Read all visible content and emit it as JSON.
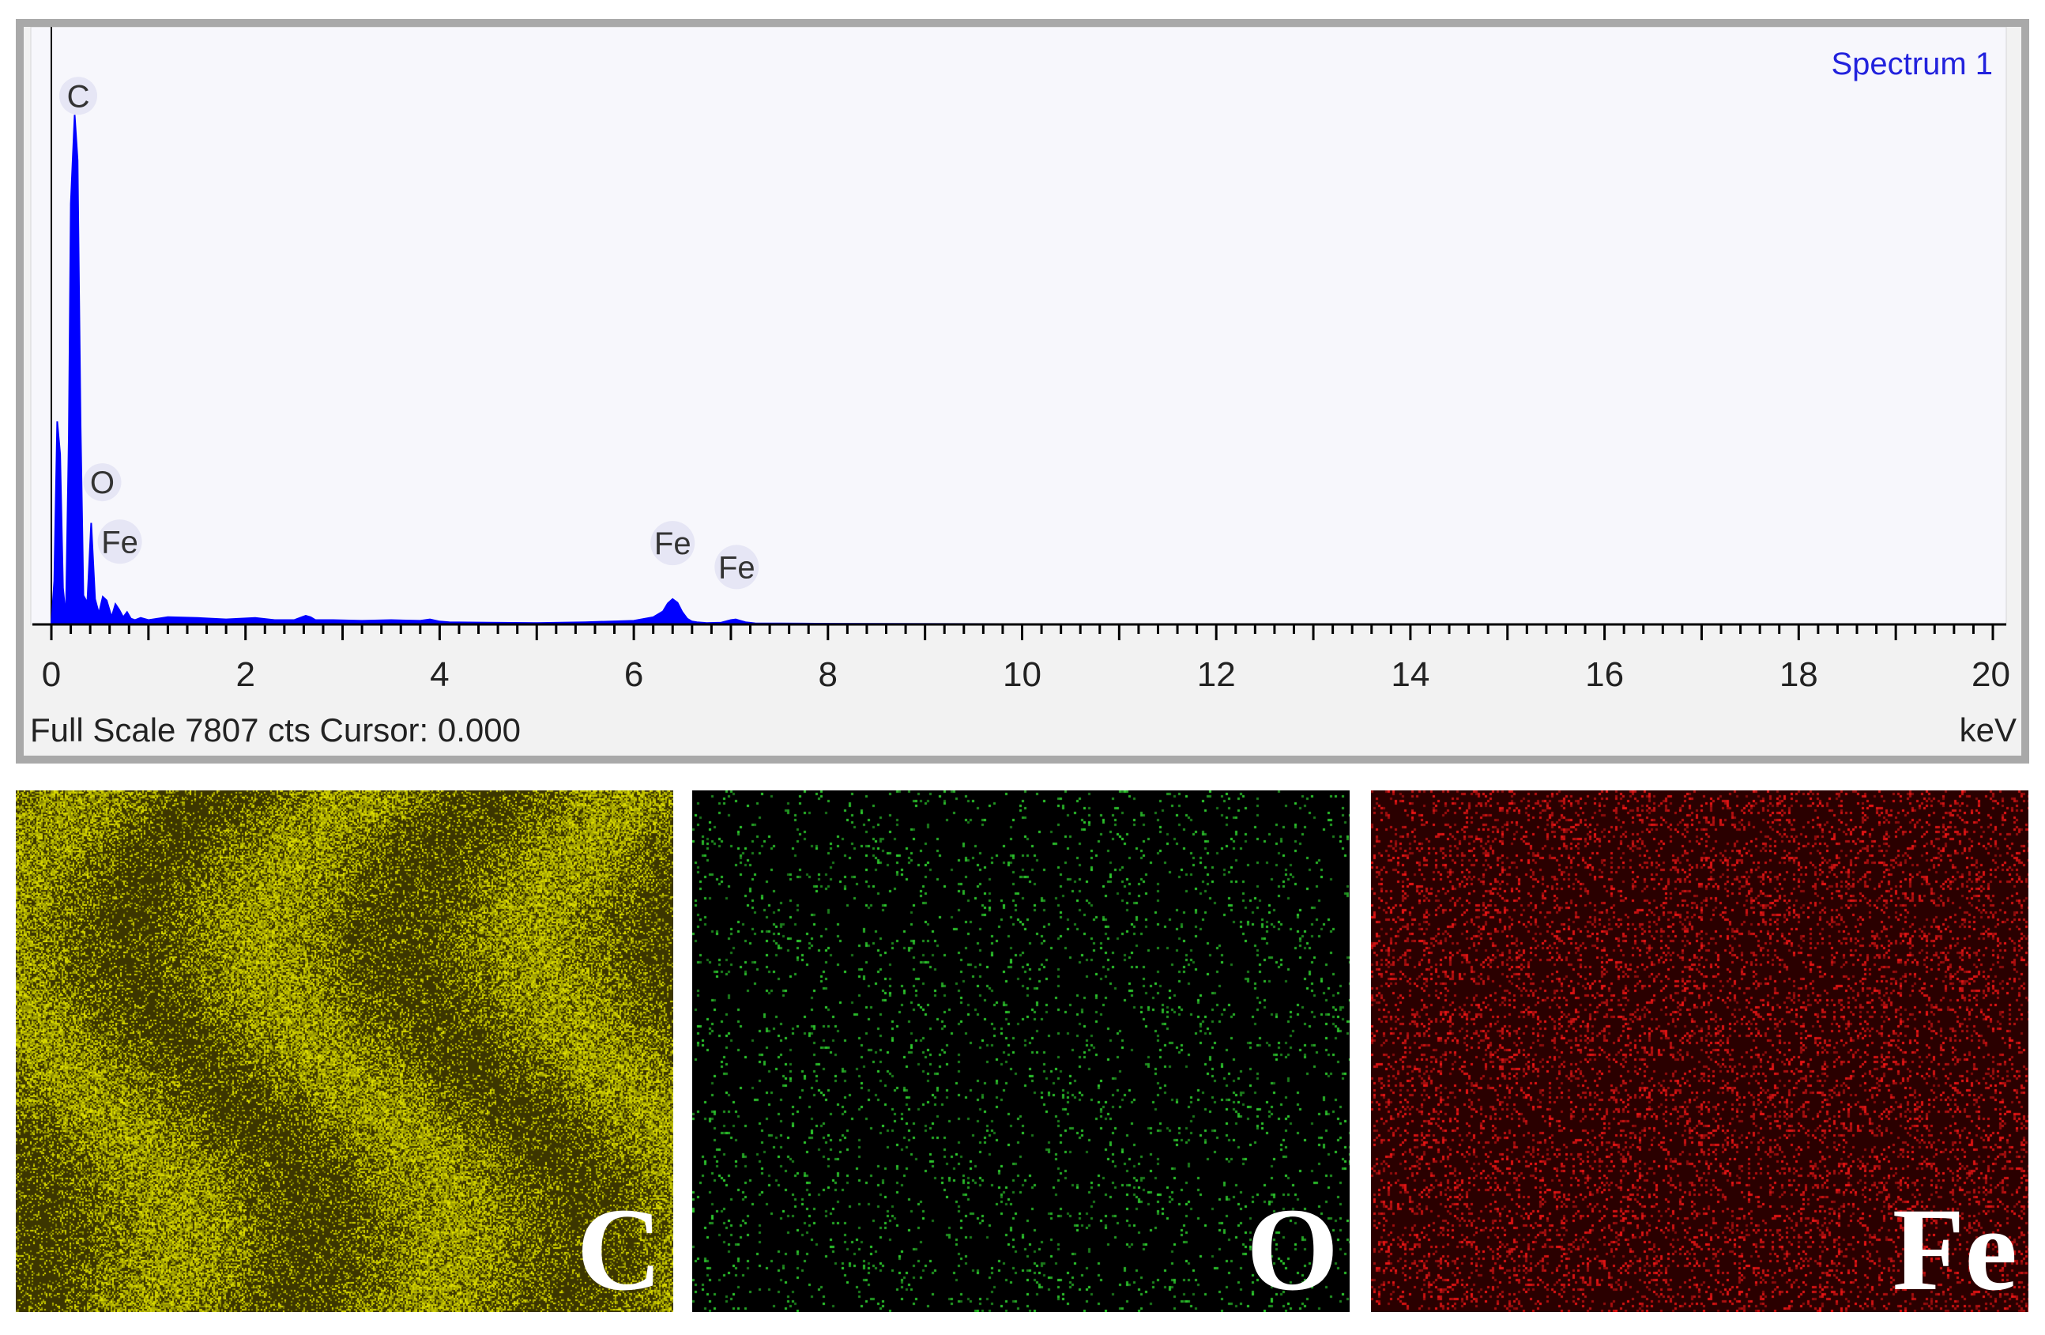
{
  "chart_data": {
    "type": "line",
    "title": "Spectrum 1",
    "xlabel": "keV",
    "xlim": [
      0,
      20
    ],
    "ylim": [
      0,
      7807
    ],
    "x_ticks": [
      0,
      2,
      4,
      6,
      8,
      10,
      12,
      14,
      16,
      18,
      20
    ],
    "x_tick_labels": [
      "0",
      "2",
      "4",
      "6",
      "8",
      "10",
      "12",
      "14",
      "16",
      "18",
      "20"
    ],
    "status": "Full Scale 7807 cts Cursor: 0.000",
    "series": [
      {
        "color": "#0000ff",
        "x": [
          0.0,
          0.03,
          0.06,
          0.09,
          0.12,
          0.15,
          0.18,
          0.2,
          0.24,
          0.27,
          0.3,
          0.33,
          0.37,
          0.41,
          0.45,
          0.49,
          0.53,
          0.57,
          0.62,
          0.66,
          0.7,
          0.74,
          0.78,
          0.82,
          0.86,
          0.92,
          1.0,
          1.2,
          1.5,
          1.8,
          2.1,
          2.3,
          2.5,
          2.62,
          2.67,
          2.72,
          2.9,
          3.2,
          3.5,
          3.8,
          3.9,
          4.0,
          4.1,
          4.5,
          5.0,
          5.5,
          6.0,
          6.2,
          6.3,
          6.35,
          6.4,
          6.45,
          6.5,
          6.55,
          6.6,
          6.65,
          6.75,
          6.9,
          7.0,
          7.05,
          7.1,
          7.15,
          7.25,
          8.0,
          10.0,
          14.0,
          20.0
        ],
        "y": [
          0,
          600,
          2800,
          2350,
          500,
          100,
          2600,
          5800,
          7030,
          6400,
          2800,
          400,
          300,
          1400,
          350,
          150,
          380,
          330,
          100,
          280,
          200,
          100,
          170,
          80,
          60,
          90,
          60,
          100,
          90,
          70,
          90,
          60,
          60,
          120,
          100,
          60,
          60,
          50,
          60,
          50,
          70,
          40,
          30,
          25,
          20,
          30,
          50,
          100,
          180,
          290,
          350,
          300,
          170,
          80,
          40,
          30,
          20,
          25,
          60,
          70,
          50,
          30,
          15,
          10,
          5,
          3,
          0
        ]
      }
    ],
    "peak_labels": [
      {
        "text": "C",
        "x": 0.277,
        "y": 7030
      },
      {
        "text": "O",
        "x": 0.525,
        "y": 1700
      },
      {
        "text": "Fe",
        "x": 0.705,
        "y": 880
      },
      {
        "text": "Fe",
        "x": 6.4,
        "y": 860
      },
      {
        "text": "Fe",
        "x": 7.06,
        "y": 530
      }
    ]
  },
  "element_maps": [
    {
      "label": "C",
      "color": "#e6e600",
      "base_color": "#3c3600"
    },
    {
      "label": "O",
      "color": "#2fd12f",
      "base_color": "#000000"
    },
    {
      "label": "Fe",
      "color": "#ee1515",
      "base_color": "#2a0000"
    }
  ]
}
